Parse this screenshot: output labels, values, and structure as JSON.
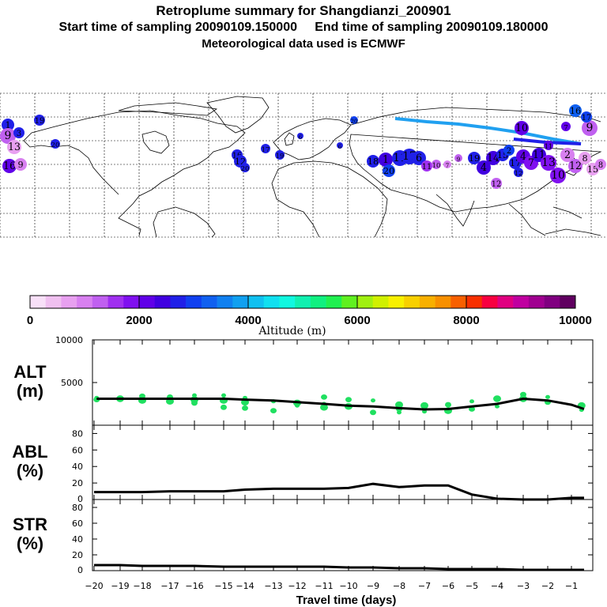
{
  "header": {
    "title": "Retroplume summary for Shangdianzi_200901",
    "sampling_line": "Start time of sampling 20090109.150000     End time of sampling 20090109.180000",
    "met_line": "Meteorological data used is ECMWF"
  },
  "colorbar": {
    "label": "Altitude (m)",
    "ticks": [
      "0",
      "2000",
      "4000",
      "6000",
      "8000",
      "10000"
    ],
    "colors": [
      "#f8e0f8",
      "#f0c0f0",
      "#e8a0f0",
      "#d880f0",
      "#c060f0",
      "#a030f0",
      "#8010f0",
      "#6000e8",
      "#4000e0",
      "#2020e8",
      "#1040f0",
      "#1060f0",
      "#1080f0",
      "#10a0f0",
      "#10c0f0",
      "#10e0f0",
      "#10f8e0",
      "#10f0b0",
      "#10f080",
      "#20f050",
      "#60f020",
      "#a0f010",
      "#d0f000",
      "#f8f000",
      "#f8d000",
      "#f8b000",
      "#f89000",
      "#f86000",
      "#f83000",
      "#f80040",
      "#e00080",
      "#c000a0",
      "#a00090",
      "#800080",
      "#600060"
    ]
  },
  "map": {
    "labels": [
      "1",
      "2",
      "3",
      "4",
      "5",
      "6",
      "7",
      "8",
      "9",
      "10",
      "11",
      "12",
      "13",
      "14",
      "15",
      "16",
      "17",
      "18",
      "19",
      "20"
    ]
  },
  "chart_data": [
    {
      "type": "line",
      "id": "alt",
      "panel_label": "ALT",
      "panel_unit": "(m)",
      "title": "Retroplume summary for Shangdianzi_200901",
      "xlabel": "Travel time (days)",
      "x_tick_labels": [
        "-20",
        "-19",
        "-18",
        "-17",
        "-16",
        "-15",
        "-14",
        "-13",
        "-12",
        "-11",
        "-10",
        "-9",
        "-8",
        "-7",
        "-6",
        "-5",
        "-4",
        "-3",
        "-2",
        "-1"
      ],
      "y_tick_labels": [
        "10000",
        "5000"
      ],
      "ylim": [
        0,
        10000
      ],
      "xlim": [
        -20.2,
        0.2
      ],
      "series": [
        {
          "name": "mean altitude",
          "x": [
            -19.9,
            -18,
            -16,
            -15,
            -14,
            -13,
            -12,
            -11,
            -10,
            -9,
            -8,
            -7,
            -6,
            -5,
            -4,
            -3,
            -2,
            -1,
            -0.5
          ],
          "values": [
            3100,
            3100,
            3100,
            3100,
            3000,
            2900,
            2700,
            2500,
            2300,
            2200,
            2000,
            1850,
            1900,
            2200,
            2500,
            3100,
            2900,
            2400,
            1900
          ]
        }
      ],
      "scatter": {
        "name": "cluster altitudes",
        "x": [
          -19.9,
          -19.9,
          -19,
          -19,
          -18,
          -18,
          -18,
          -17,
          -17,
          -16,
          -16,
          -16,
          -15,
          -15,
          -15,
          -14,
          -14,
          -14,
          -13,
          -13,
          -12,
          -12,
          -11,
          -11,
          -11,
          -10,
          -10,
          -9,
          -9,
          -8,
          -8,
          -8,
          -7,
          -7,
          -6,
          -6,
          -5,
          -5,
          -4,
          -4,
          -3,
          -3,
          -2,
          -2,
          -0.6,
          -0.6
        ],
        "values": [
          3200,
          3000,
          3100,
          3200,
          3400,
          2900,
          3200,
          3300,
          2800,
          3500,
          2600,
          3000,
          3500,
          2100,
          2900,
          3200,
          2000,
          2700,
          2800,
          1700,
          2600,
          2300,
          3300,
          2100,
          2500,
          3000,
          2200,
          2900,
          1500,
          2400,
          1500,
          1900,
          2300,
          1600,
          2400,
          1700,
          2800,
          1900,
          3100,
          2200,
          3600,
          3100,
          3300,
          2700,
          2300,
          1800
        ]
      }
    },
    {
      "type": "line",
      "id": "abl",
      "panel_label": "ABL",
      "panel_unit": "(%)",
      "y_tick_labels": [
        "80",
        "60",
        "40",
        "20",
        "0"
      ],
      "ylim": [
        0,
        90
      ],
      "xlim": [
        -20.2,
        0.2
      ],
      "series": [
        {
          "name": "ABL fraction",
          "x": [
            -20,
            -19,
            -18,
            -17,
            -16,
            -15,
            -14,
            -13,
            -12,
            -11,
            -10,
            -9,
            -8,
            -7,
            -6,
            -5,
            -4,
            -3,
            -2,
            -1,
            -0.5
          ],
          "values": [
            9,
            9,
            9,
            10,
            10,
            10,
            12,
            13,
            13,
            13,
            14,
            19,
            15,
            17,
            17,
            6,
            1,
            0,
            0,
            2,
            2
          ]
        }
      ]
    },
    {
      "type": "line",
      "id": "str",
      "panel_label": "STR",
      "panel_unit": "(%)",
      "y_tick_labels": [
        "80",
        "60",
        "40",
        "20",
        "0"
      ],
      "ylim": [
        0,
        90
      ],
      "xlim": [
        -20.2,
        0.2
      ],
      "series": [
        {
          "name": "STR fraction",
          "x": [
            -20,
            -19,
            -18,
            -17,
            -16,
            -15,
            -14,
            -13,
            -12,
            -11,
            -10,
            -9,
            -8,
            -7,
            -6,
            -5,
            -4,
            -3,
            -2,
            -1,
            -0.5
          ],
          "values": [
            7,
            7,
            6,
            6,
            6,
            5,
            5,
            5,
            5,
            5,
            4,
            4,
            3,
            3,
            2,
            2,
            2,
            1,
            1,
            1,
            1
          ]
        }
      ]
    }
  ]
}
